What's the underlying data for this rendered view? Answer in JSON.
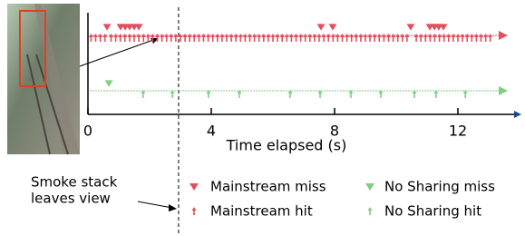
{
  "chart_data": {
    "type": "event",
    "xlabel": "Time elapsed (s)",
    "xlim": [
      0,
      14
    ],
    "xticks": [
      0,
      4,
      8,
      12
    ],
    "annotation": {
      "lines": [
        "Smoke stack",
        "leaves view"
      ],
      "x": 2.94
    },
    "series": [
      {
        "name": "Mainstream miss",
        "color": "#e0505e",
        "marker": "triangle",
        "x": [
          0.62,
          1.06,
          1.21,
          1.35,
          1.5,
          1.65,
          7.56,
          7.94,
          10.47,
          11.09,
          11.24,
          11.38,
          11.53
        ]
      },
      {
        "name": "Mainstream hit",
        "color": "#e0505e",
        "marker": "arrow",
        "x": [
          0.1,
          0.25,
          0.4,
          0.55,
          0.75,
          0.9,
          1.05,
          1.2,
          1.35,
          1.5,
          1.65,
          1.8,
          1.95,
          2.1,
          2.25,
          2.4,
          2.55,
          2.7,
          2.85,
          3.0,
          3.15,
          3.3,
          3.45,
          3.6,
          3.75,
          3.9,
          4.05,
          4.2,
          4.35,
          4.5,
          4.65,
          4.8,
          4.95,
          5.1,
          5.25,
          5.4,
          5.55,
          5.7,
          5.85,
          6.0,
          6.15,
          6.3,
          6.45,
          6.6,
          6.75,
          6.9,
          7.05,
          7.2,
          7.35,
          7.5,
          7.65,
          7.8,
          7.95,
          8.1,
          8.25,
          8.4,
          8.55,
          8.7,
          8.85,
          9.0,
          9.15,
          9.3,
          9.45,
          9.6,
          9.75,
          9.9,
          10.05,
          10.2,
          10.35,
          10.65,
          10.8,
          10.95,
          11.1,
          11.25,
          11.4,
          11.55,
          11.7,
          11.85,
          12.0,
          12.15,
          12.3,
          12.45,
          12.6,
          12.75,
          12.9,
          13.05
        ]
      },
      {
        "name": "No Sharing miss",
        "color": "#7fcf7f",
        "marker": "triangle",
        "x": [
          0.68
        ]
      },
      {
        "name": "No Sharing hit",
        "color": "#7fcf7f",
        "marker": "arrow",
        "x": [
          1.79,
          2.74,
          3.91,
          4.91,
          6.56,
          7.53,
          8.53,
          9.5,
          10.59,
          11.29,
          12.24
        ]
      }
    ]
  }
}
